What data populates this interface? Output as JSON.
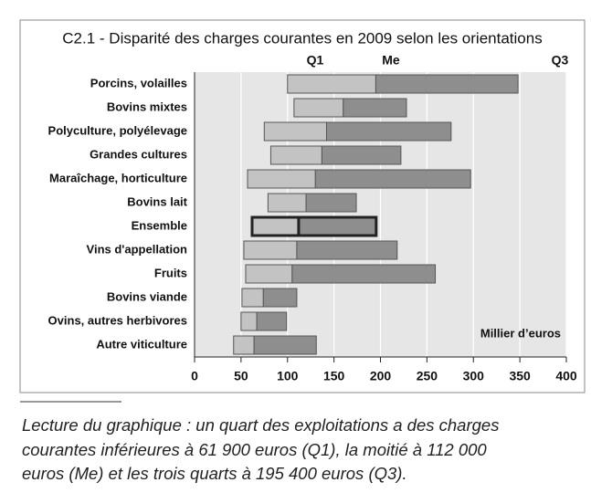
{
  "chart_data": {
    "type": "range_bar",
    "title": "C2.1 - Disparité des charges courantes en 2009 selon les orientations",
    "column_labels": [
      "Q1",
      "Me",
      "Q3"
    ],
    "unit_label": "Millier d’euros",
    "categories": [
      "Porcins, volailles",
      "Bovins mixtes",
      "Polyculture, polyélevage",
      "Grandes cultures",
      "Maraîchage, horticulture",
      "Bovins lait",
      "Ensemble",
      "Vins d'appellation",
      "Fruits",
      "Bovins viande",
      "Ovins, autres herbivores",
      "Autre viticulture"
    ],
    "highlight": "Ensemble",
    "q1": [
      100,
      107,
      75,
      82,
      57,
      79,
      61.9,
      53,
      55,
      51,
      50,
      42
    ],
    "me": [
      195,
      160,
      142,
      137,
      130,
      120,
      112,
      110,
      105,
      74,
      67,
      64
    ],
    "q3": [
      348,
      228,
      276,
      222,
      297,
      174,
      195.4,
      218,
      259,
      110,
      99,
      131
    ],
    "colors": {
      "lower": "#c3c3c3",
      "upper": "#8e8e8e"
    },
    "xlim": [
      0,
      400
    ],
    "xticks": [
      0,
      50,
      100,
      150,
      200,
      250,
      300,
      350,
      400
    ],
    "grid": true,
    "note": [
      "Lecture du graphique : un quart des exploitations a des charges",
      "courantes inférieures à 61 900 euros (Q1), la moitié à 112 000",
      "euros (Me) et les trois quarts à 195 400 euros (Q3)."
    ]
  }
}
